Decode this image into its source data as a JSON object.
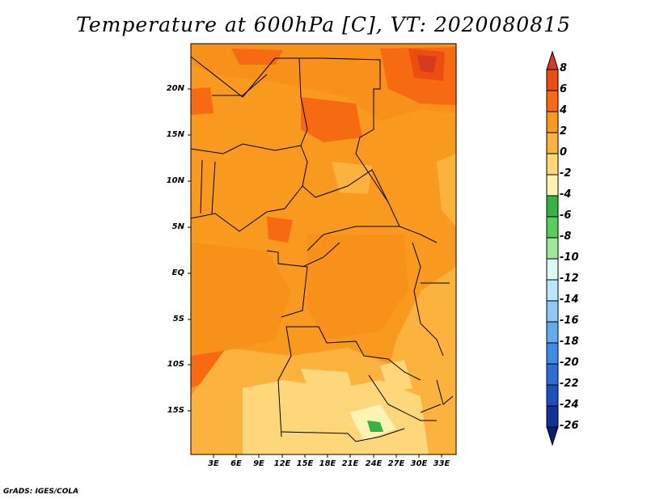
{
  "title": "Temperature at 600hPa [C], VT: 2020080815",
  "footer": "GrADS: IGES/COLA",
  "map": {
    "lat_labels": [
      "20N",
      "15N",
      "10N",
      "5N",
      "EQ",
      "5S",
      "10S",
      "15S"
    ],
    "lon_labels": [
      "3E",
      "6E",
      "9E",
      "12E",
      "15E",
      "18E",
      "21E",
      "24E",
      "27E",
      "30E",
      "33E"
    ]
  },
  "colorbar": {
    "levels": [
      "8",
      "6",
      "4",
      "2",
      "0",
      "-2",
      "-4",
      "-6",
      "-8",
      "-10",
      "-12",
      "-14",
      "-16",
      "-18",
      "-20",
      "-22",
      "-24",
      "-26"
    ],
    "colors": [
      "#d73a1e",
      "#ee4d10",
      "#f66b12",
      "#f99a1e",
      "#fbb33e",
      "#fdd77a",
      "#fef3b3",
      "#36b342",
      "#58cf5c",
      "#9ee89a",
      "#def8f4",
      "#bde6f8",
      "#8ecaf3",
      "#60acee",
      "#3a8ee8",
      "#2b6fdb",
      "#1d4fbf",
      "#10329a",
      "#0a1f72"
    ]
  }
}
